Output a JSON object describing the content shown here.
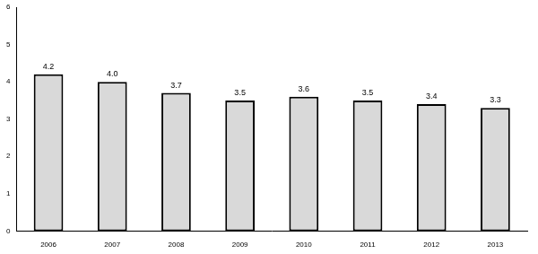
{
  "chart_data": {
    "type": "bar",
    "categories": [
      "2006",
      "2007",
      "2008",
      "2009",
      "2010",
      "2011",
      "2012",
      "2013"
    ],
    "values": [
      4.2,
      4.0,
      3.7,
      3.5,
      3.6,
      3.5,
      3.4,
      3.3
    ],
    "value_labels": [
      "4.2",
      "4.0",
      "3.7",
      "3.5",
      "3.6",
      "3.5",
      "3.4",
      "3.3"
    ],
    "color": "#d9d9d9",
    "ylim": [
      0,
      6
    ],
    "yticks": [
      0,
      1,
      2,
      3,
      4,
      5,
      6
    ],
    "grid": false,
    "data_labels": true
  }
}
